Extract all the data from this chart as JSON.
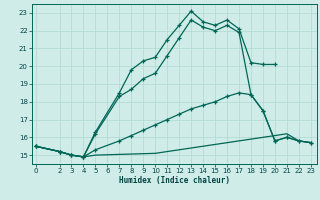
{
  "xlabel": "Humidex (Indice chaleur)",
  "bg_color": "#d0ece8",
  "grid_color": "#b0d8d0",
  "line_color": "#006655",
  "curve1_x": [
    0,
    2,
    3,
    4,
    5,
    7,
    8,
    9,
    10,
    11,
    12,
    13,
    14,
    15,
    16,
    17,
    18,
    19,
    20
  ],
  "curve1_y": [
    15.5,
    15.2,
    15.0,
    14.9,
    16.3,
    18.5,
    19.8,
    20.3,
    20.5,
    21.5,
    22.3,
    23.1,
    22.5,
    22.3,
    22.6,
    22.1,
    20.2,
    20.1,
    20.1
  ],
  "curve2_x": [
    0,
    2,
    3,
    4,
    5,
    7,
    8,
    9,
    10,
    11,
    12,
    13,
    14,
    15,
    16,
    17,
    18,
    19,
    20,
    21,
    22,
    23
  ],
  "curve2_y": [
    15.5,
    15.2,
    15.0,
    14.9,
    16.2,
    18.3,
    18.7,
    19.3,
    19.6,
    20.6,
    21.6,
    22.6,
    22.2,
    22.0,
    22.3,
    21.9,
    18.4,
    17.5,
    15.8,
    16.0,
    15.8,
    15.7
  ],
  "curve3_x": [
    0,
    2,
    3,
    4,
    5,
    7,
    8,
    9,
    10,
    11,
    12,
    13,
    14,
    15,
    16,
    17,
    18,
    19,
    20,
    21,
    22,
    23
  ],
  "curve3_y": [
    15.5,
    15.2,
    15.0,
    14.9,
    15.3,
    15.8,
    16.1,
    16.4,
    16.7,
    17.0,
    17.3,
    17.6,
    17.8,
    18.0,
    18.3,
    18.5,
    18.4,
    17.5,
    15.8,
    16.0,
    15.8,
    15.7
  ],
  "curve4_x": [
    0,
    2,
    3,
    4,
    5,
    10,
    11,
    12,
    13,
    14,
    15,
    16,
    17,
    18,
    19,
    20,
    21,
    22,
    23
  ],
  "curve4_y": [
    15.5,
    15.2,
    15.0,
    14.9,
    15.0,
    15.1,
    15.2,
    15.3,
    15.4,
    15.5,
    15.6,
    15.7,
    15.8,
    15.9,
    16.0,
    16.1,
    16.2,
    15.8,
    15.7
  ],
  "ylim": [
    14.5,
    23.5
  ],
  "xlim": [
    -0.3,
    23.5
  ],
  "yticks": [
    15,
    16,
    17,
    18,
    19,
    20,
    21,
    22,
    23
  ],
  "xticks": [
    0,
    2,
    3,
    4,
    5,
    6,
    7,
    8,
    9,
    10,
    11,
    12,
    13,
    14,
    15,
    16,
    17,
    18,
    19,
    20,
    21,
    22,
    23
  ]
}
